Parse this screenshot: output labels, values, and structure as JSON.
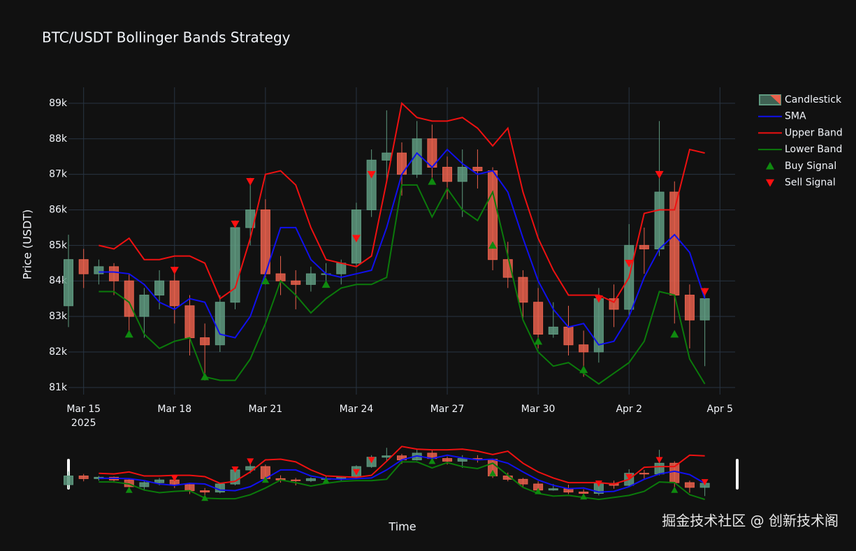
{
  "chart_data": {
    "type": "candlestick",
    "title": "BTC/USDT Bollinger Bands Strategy",
    "xlabel": "Time",
    "ylabel": "Price (USDT)",
    "watermark": "掘金技术社区 @ 创新技术阁",
    "x": [
      "2025-03-14T12:00",
      "2025-03-15T00:00",
      "2025-03-15T12:00",
      "2025-03-16T00:00",
      "2025-03-16T12:00",
      "2025-03-17T00:00",
      "2025-03-17T12:00",
      "2025-03-18T00:00",
      "2025-03-18T12:00",
      "2025-03-19T00:00",
      "2025-03-19T12:00",
      "2025-03-20T00:00",
      "2025-03-20T12:00",
      "2025-03-21T00:00",
      "2025-03-21T12:00",
      "2025-03-22T00:00",
      "2025-03-22T12:00",
      "2025-03-23T00:00",
      "2025-03-23T12:00",
      "2025-03-24T00:00",
      "2025-03-24T12:00",
      "2025-03-25T00:00",
      "2025-03-25T12:00",
      "2025-03-26T00:00",
      "2025-03-26T12:00",
      "2025-03-27T00:00",
      "2025-03-27T12:00",
      "2025-03-28T00:00",
      "2025-03-28T12:00",
      "2025-03-29T00:00",
      "2025-03-29T12:00",
      "2025-03-30T00:00",
      "2025-03-30T12:00",
      "2025-03-31T00:00",
      "2025-03-31T12:00",
      "2025-04-01T00:00",
      "2025-04-01T12:00",
      "2025-04-02T00:00",
      "2025-04-02T12:00",
      "2025-04-03T00:00",
      "2025-04-03T12:00",
      "2025-04-04T00:00",
      "2025-04-04T12:00"
    ],
    "candles": {
      "name": "Candlestick",
      "increasing_color": "#5f9a80",
      "decreasing_color": "#e8604c",
      "open": [
        83300,
        84600,
        84200,
        84400,
        84000,
        83000,
        83600,
        84000,
        83300,
        82400,
        82200,
        83400,
        85500,
        86000,
        84200,
        84000,
        83900,
        84200,
        84200,
        84500,
        86000,
        87400,
        87600,
        87000,
        88000,
        87200,
        86800,
        87200,
        87100,
        84600,
        84100,
        83400,
        82500,
        82700,
        82200,
        82000,
        83500,
        83200,
        85000,
        84900,
        86500,
        83600,
        82900
      ],
      "high": [
        85300,
        84900,
        84600,
        84500,
        84200,
        83800,
        84300,
        84400,
        83600,
        82800,
        83600,
        85700,
        86900,
        86300,
        84700,
        84300,
        84400,
        84500,
        84600,
        86200,
        87700,
        88800,
        87900,
        88500,
        88400,
        87500,
        87700,
        87700,
        87200,
        85100,
        84300,
        83800,
        83400,
        83300,
        82600,
        83800,
        83900,
        85600,
        85500,
        88500,
        86800,
        83900,
        83800
      ],
      "low": [
        82700,
        83800,
        83900,
        83600,
        82500,
        82400,
        83200,
        82800,
        81900,
        81200,
        82000,
        83200,
        85000,
        83900,
        83600,
        83200,
        83700,
        83900,
        83900,
        84400,
        85800,
        86800,
        86400,
        86900,
        86900,
        86300,
        85800,
        86600,
        84300,
        83800,
        82900,
        82100,
        82400,
        81900,
        81300,
        81700,
        82700,
        83000,
        84200,
        84700,
        82800,
        82100,
        81600
      ],
      "close": [
        84600,
        84200,
        84400,
        84000,
        83000,
        83600,
        84000,
        83300,
        82400,
        82200,
        83400,
        85500,
        86000,
        84200,
        84000,
        83900,
        84200,
        84200,
        84500,
        86000,
        87400,
        87600,
        87000,
        88000,
        87200,
        86800,
        87200,
        87100,
        84600,
        84100,
        83400,
        82500,
        82700,
        82200,
        82000,
        83500,
        83200,
        85000,
        84900,
        86500,
        83600,
        82900,
        83500
      ]
    },
    "series": [
      {
        "name": "SMA",
        "color": "#1010ee",
        "values": [
          null,
          null,
          84250,
          84250,
          84200,
          83900,
          83400,
          83200,
          83500,
          83400,
          82500,
          82400,
          83000,
          84200,
          85500,
          85500,
          84600,
          84200,
          84100,
          84200,
          84300,
          85500,
          87000,
          87600,
          87200,
          87700,
          87300,
          87000,
          87100,
          86500,
          85200,
          84000,
          83200,
          82700,
          82800,
          82200,
          82300,
          83000,
          84100,
          84900,
          85300,
          84800,
          83500
        ]
      },
      {
        "name": "Upper Band",
        "color": "#ee1111",
        "values": [
          null,
          null,
          85000,
          84900,
          85200,
          84600,
          84600,
          84700,
          84700,
          84500,
          83500,
          83800,
          85200,
          87000,
          87100,
          86700,
          85500,
          84600,
          84500,
          84400,
          84700,
          86800,
          89000,
          88600,
          88500,
          88500,
          88600,
          88300,
          87800,
          88300,
          86500,
          85200,
          84300,
          83600,
          83600,
          83600,
          83400,
          84100,
          85900,
          86000,
          86000,
          87700,
          87600
        ]
      },
      {
        "name": "Lower Band",
        "color": "#0b7a0b",
        "values": [
          null,
          null,
          83700,
          83700,
          83400,
          82500,
          82100,
          82300,
          82400,
          81300,
          81200,
          81200,
          81800,
          82800,
          84000,
          83600,
          83100,
          83500,
          83800,
          83900,
          83900,
          84100,
          86700,
          86700,
          85800,
          86600,
          86000,
          85700,
          86500,
          84700,
          82900,
          82000,
          81600,
          81700,
          81400,
          81100,
          81400,
          81700,
          82300,
          83700,
          83600,
          81800,
          81100
        ]
      }
    ],
    "signals": [
      {
        "name": "Buy Signal",
        "color": "#0f8a0f",
        "marker": "triangle-up",
        "x": [
          "2025-03-16T12:00",
          "2025-03-19T00:00",
          "2025-03-21T00:00",
          "2025-03-23T00:00",
          "2025-03-26T12:00",
          "2025-03-28T12:00",
          "2025-03-30T00:00",
          "2025-03-31T12:00",
          "2025-04-03T12:00"
        ],
        "values": [
          82500,
          81300,
          84000,
          83900,
          86800,
          85000,
          82300,
          81500,
          82500
        ]
      },
      {
        "name": "Sell Signal",
        "color": "#ff1010",
        "marker": "triangle-down",
        "x": [
          "2025-03-18T00:00",
          "2025-03-20T00:00",
          "2025-03-20T12:00",
          "2025-03-24T00:00",
          "2025-03-24T12:00",
          "2025-04-01T00:00",
          "2025-04-02T00:00",
          "2025-04-03T00:00",
          "2025-04-04T12:00"
        ],
        "values": [
          84300,
          85600,
          86800,
          85200,
          87000,
          83500,
          84500,
          87000,
          83700
        ]
      }
    ],
    "xlim": [
      "2025-03-14T12:00",
      "2025-04-05T12:00"
    ],
    "xticks": [
      {
        "value": "2025-03-15T00:00",
        "label": "Mar 15"
      },
      {
        "value": "2025-03-18T00:00",
        "label": "Mar 18"
      },
      {
        "value": "2025-03-21T00:00",
        "label": "Mar 21"
      },
      {
        "value": "2025-03-24T00:00",
        "label": "Mar 24"
      },
      {
        "value": "2025-03-27T00:00",
        "label": "Mar 27"
      },
      {
        "value": "2025-03-30T00:00",
        "label": "Mar 30"
      },
      {
        "value": "2025-04-02T00:00",
        "label": "Apr 2"
      },
      {
        "value": "2025-04-05T00:00",
        "label": "Apr 5"
      }
    ],
    "x_year": "2025",
    "ylim": [
      80800,
      89450
    ],
    "yticks": [
      {
        "value": 81000,
        "label": "81k"
      },
      {
        "value": 82000,
        "label": "82k"
      },
      {
        "value": 83000,
        "label": "83k"
      },
      {
        "value": 84000,
        "label": "84k"
      },
      {
        "value": 85000,
        "label": "85k"
      },
      {
        "value": 86000,
        "label": "86k"
      },
      {
        "value": 87000,
        "label": "87k"
      },
      {
        "value": 88000,
        "label": "88k"
      },
      {
        "value": 89000,
        "label": "89k"
      }
    ],
    "grid": true,
    "legend": "right",
    "rangeslider": true
  }
}
